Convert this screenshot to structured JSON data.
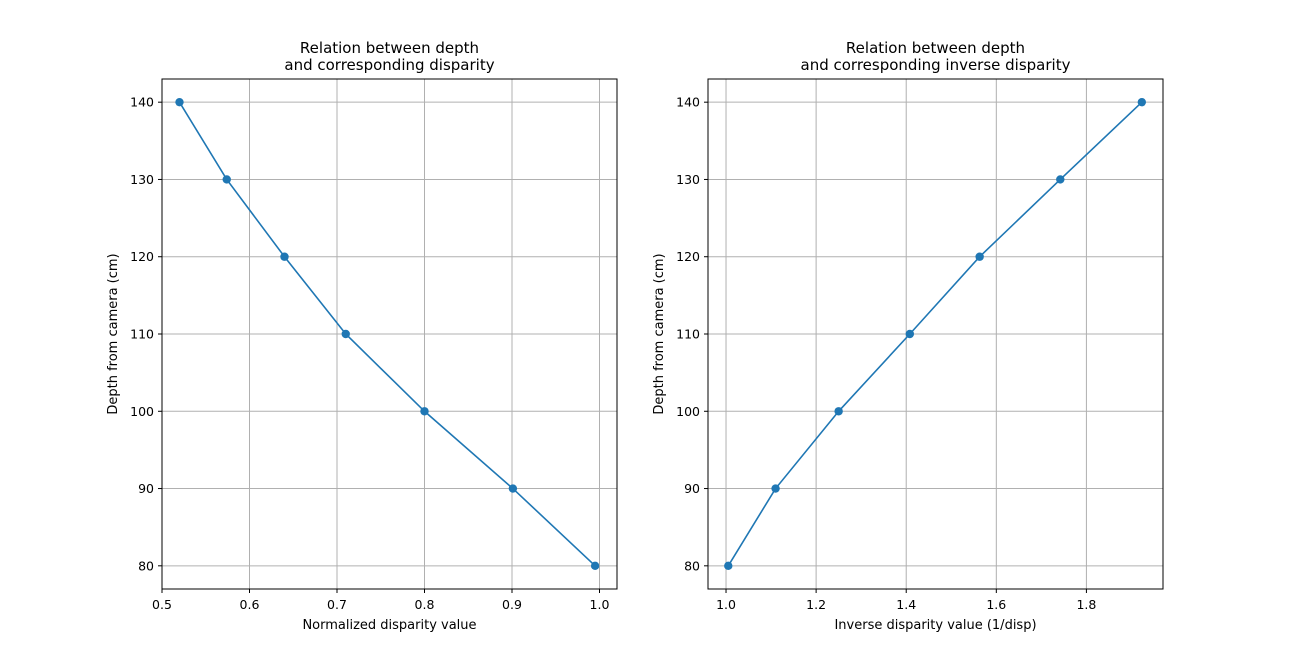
{
  "chart_data": [
    {
      "type": "line",
      "title": [
        "Relation between depth",
        "and corresponding disparity"
      ],
      "xlabel": "Normalized disparity value",
      "ylabel": "Depth from camera (cm)",
      "xlim": [
        0.5,
        1.02
      ],
      "ylim": [
        77,
        143
      ],
      "xticks": [
        0.5,
        0.6,
        0.7,
        0.8,
        0.9,
        1.0
      ],
      "xtick_labels": [
        "0.5",
        "0.6",
        "0.7",
        "0.8",
        "0.9",
        "1.0"
      ],
      "yticks": [
        80,
        90,
        100,
        110,
        120,
        130,
        140
      ],
      "ytick_labels": [
        "80",
        "90",
        "100",
        "110",
        "120",
        "130",
        "140"
      ],
      "grid": true,
      "series": [
        {
          "color": "#1f77b4",
          "marker": "circle",
          "x": [
            0.52,
            0.574,
            0.64,
            0.71,
            0.8,
            0.901,
            0.995
          ],
          "y": [
            140,
            130,
            120,
            110,
            100,
            90,
            80
          ]
        }
      ]
    },
    {
      "type": "line",
      "title": [
        "Relation between depth",
        "and corresponding inverse disparity"
      ],
      "xlabel": "Inverse disparity value (1/disp)",
      "ylabel": "Depth from camera (cm)",
      "xlim": [
        0.96,
        1.97
      ],
      "ylim": [
        77,
        143
      ],
      "xticks": [
        1.0,
        1.2,
        1.4,
        1.6,
        1.8
      ],
      "xtick_labels": [
        "1.0",
        "1.2",
        "1.4",
        "1.6",
        "1.8"
      ],
      "yticks": [
        80,
        90,
        100,
        110,
        120,
        130,
        140
      ],
      "ytick_labels": [
        "80",
        "90",
        "100",
        "110",
        "120",
        "130",
        "140"
      ],
      "grid": true,
      "series": [
        {
          "color": "#1f77b4",
          "marker": "circle",
          "x": [
            1.005,
            1.11,
            1.25,
            1.408,
            1.563,
            1.742,
            1.923
          ],
          "y": [
            80,
            90,
            100,
            110,
            120,
            130,
            140
          ]
        }
      ]
    }
  ]
}
